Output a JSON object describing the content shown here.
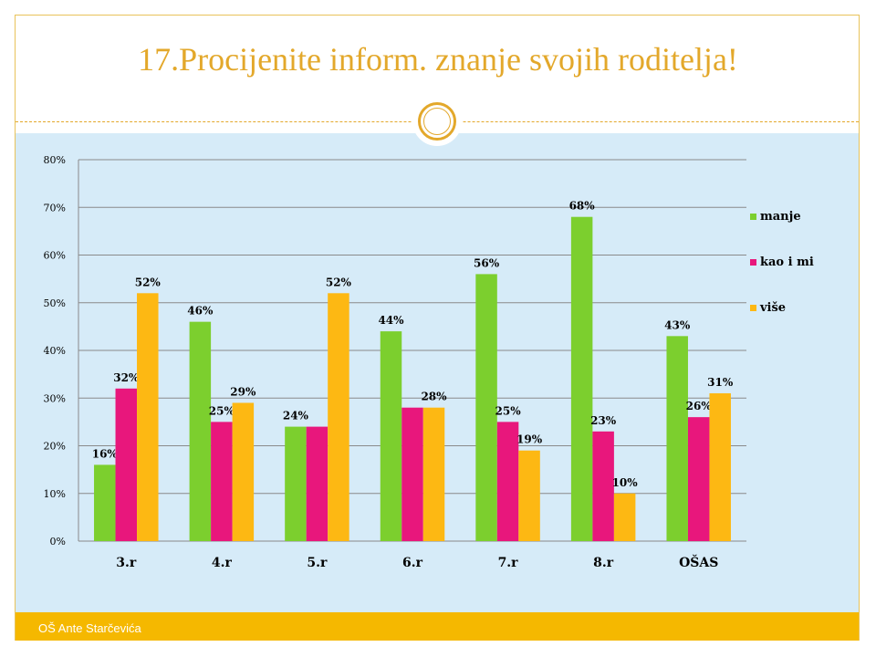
{
  "slide": {
    "title": "17.Procijenite inform. znanje svojih roditelja!",
    "footer": "OŠ Ante Starčevića"
  },
  "colors": {
    "accent": "#e3a82b",
    "panel": "#d6ebf8",
    "footer": "#f5b800"
  },
  "chart_data": {
    "type": "bar",
    "categories": [
      "3.r",
      "4.r",
      "5.r",
      "6.r",
      "7.r",
      "8.r",
      "OŠAS"
    ],
    "series": [
      {
        "name": "manje",
        "color": "#7ccf2e",
        "values": [
          16,
          46,
          24,
          44,
          56,
          68,
          43
        ]
      },
      {
        "name": "kao i mi",
        "color": "#e8177c",
        "values": [
          32,
          25,
          24,
          28,
          25,
          23,
          26
        ]
      },
      {
        "name": "više",
        "color": "#fdb813",
        "values": [
          52,
          29,
          52,
          28,
          19,
          10,
          31
        ]
      }
    ],
    "labels": [
      [
        "16%",
        "46%",
        "24%",
        "44%",
        "56%",
        "68%",
        "43%"
      ],
      [
        "32%",
        "25%",
        "",
        "",
        "25%",
        "23%",
        "26%"
      ],
      [
        "52%",
        "29%",
        "52%",
        "28%",
        "19%",
        "10%",
        "31%"
      ]
    ],
    "ylim": [
      0,
      80
    ],
    "yticks": [
      "0%",
      "10%",
      "20%",
      "30%",
      "40%",
      "50%",
      "60%",
      "70%",
      "80%"
    ],
    "grid": true,
    "legend": "right"
  }
}
